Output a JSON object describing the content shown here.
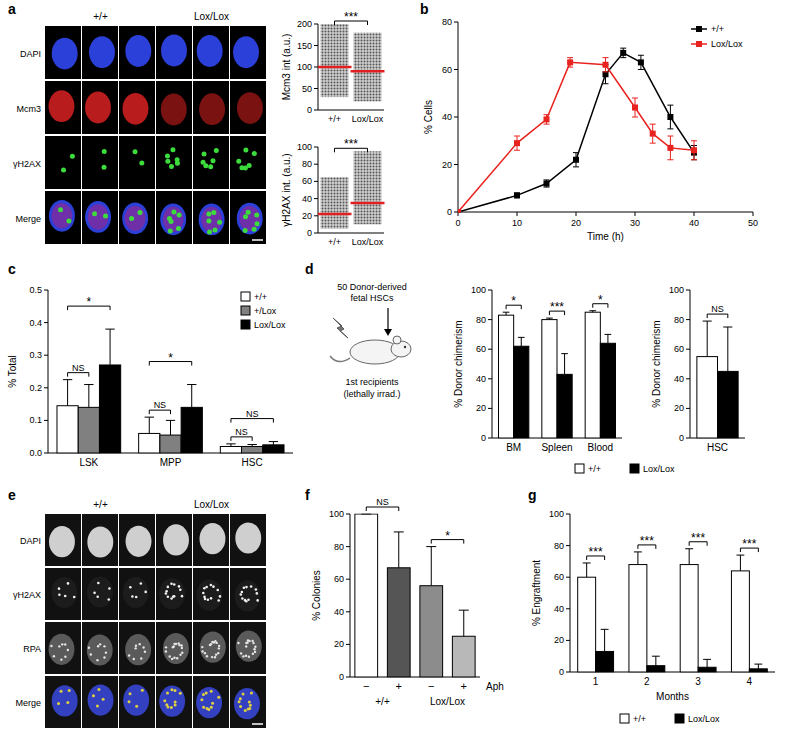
{
  "panel_labels": [
    "a",
    "b",
    "c",
    "d",
    "e",
    "f",
    "g"
  ],
  "images": [
    {
      "columns": [
        "+/+",
        "Lox/Lox"
      ],
      "rows": [
        "DAPI",
        "Mcm3",
        "γH2AX",
        "Merge"
      ]
    },
    {
      "columns": [
        "+/+",
        "Lox/Lox"
      ],
      "rows": [
        "DAPI",
        "γH2AX",
        "RPA",
        "Merge"
      ]
    }
  ],
  "schematic": {
    "donor": [
      "50 Donor-derived",
      "fetal HSCs"
    ],
    "recipient": [
      "1st recipients",
      "(lethally irrad.)"
    ]
  },
  "chart_data": [
    {
      "type": "dot_plot",
      "y_label": "Mcm3 int (a.u.)",
      "categories": [
        "+/+",
        "Lox/Lox"
      ],
      "values": [
        100,
        90
      ],
      "ranges": [
        [
          30,
          200
        ],
        [
          20,
          180
        ]
      ],
      "color": "#e02020",
      "ylim": [
        0,
        200
      ],
      "yticks": [
        0,
        50,
        100,
        150,
        200
      ],
      "annotations": [
        "***"
      ]
    },
    {
      "type": "dot_plot",
      "y_label": "γH2AX int. (a.u.)",
      "categories": [
        "+/+",
        "Lox/Lox"
      ],
      "values": [
        22,
        35
      ],
      "ranges": [
        [
          5,
          65
        ],
        [
          10,
          95
        ]
      ],
      "color": "#e02020",
      "ylim": [
        0,
        100
      ],
      "yticks": [
        0,
        20,
        40,
        60,
        80,
        100
      ],
      "annotations": [
        "***"
      ]
    },
    {
      "type": "line",
      "x_label": "Time (h)",
      "y_label": "% Cells",
      "xlim": [
        0,
        50
      ],
      "xticks": [
        0,
        10,
        20,
        30,
        40,
        50
      ],
      "ylim": [
        0,
        80
      ],
      "yticks": [
        0,
        20,
        40,
        60,
        80
      ],
      "legend": "top-right",
      "series": [
        {
          "name": "+/+",
          "color": "#000000",
          "marker": "square",
          "x": [
            0,
            10,
            15,
            20,
            25,
            28,
            31,
            36,
            40
          ],
          "values": [
            0,
            7,
            12,
            22,
            58,
            67,
            63,
            40,
            25
          ],
          "errors": [
            0,
            1,
            1.5,
            3,
            4,
            2,
            3,
            5,
            3
          ]
        },
        {
          "name": "Lox/Lox",
          "color": "#e8231f",
          "marker": "square",
          "x": [
            0,
            10,
            15,
            19,
            25,
            30,
            33,
            36,
            40
          ],
          "values": [
            0,
            29,
            39,
            63,
            62,
            44,
            33,
            27,
            26
          ],
          "errors": [
            0,
            3,
            2,
            2,
            3,
            4,
            4,
            5,
            4
          ]
        }
      ]
    },
    {
      "type": "bar",
      "y_label": "% Total",
      "categories": [
        "LSK",
        "MPP",
        "HSC"
      ],
      "ylim": [
        0,
        0.5
      ],
      "yticks": [
        {
          "value": 0,
          "label": "0.0"
        },
        0.1,
        0.2,
        0.3,
        0.4,
        0.5
      ],
      "legend": "top-right",
      "series": [
        {
          "name": "+/+",
          "color": "#ffffff",
          "values": [
            0.145,
            0.06,
            0.02
          ],
          "errors": [
            0.08,
            0.05,
            0.008
          ]
        },
        {
          "name": "+/Lox",
          "color": "#808080",
          "values": [
            0.14,
            0.055,
            0.02
          ],
          "errors": [
            0.07,
            0.045,
            0.006
          ]
        },
        {
          "name": "Lox/Lox",
          "color": "#000000",
          "values": [
            0.27,
            0.14,
            0.025
          ],
          "errors": [
            0.11,
            0.07,
            0.01
          ]
        }
      ],
      "annotations": [
        "NS",
        "*",
        "NS",
        "*",
        "NS",
        "NS"
      ]
    },
    {
      "type": "bar",
      "y_label": "% Donor chimerism",
      "categories": [
        "BM",
        "Spleen",
        "Blood"
      ],
      "ylim": [
        0,
        100
      ],
      "yticks": [
        0,
        20,
        40,
        60,
        80,
        100
      ],
      "legend": "bottom",
      "series": [
        {
          "name": "+/+",
          "color": "#ffffff",
          "values": [
            83,
            80,
            85
          ],
          "errors": [
            2,
            1,
            1
          ]
        },
        {
          "name": "Lox/Lox",
          "color": "#000000",
          "values": [
            62,
            43,
            64
          ],
          "errors": [
            6,
            14,
            6
          ]
        }
      ],
      "annotations": [
        "*",
        "***",
        "*"
      ]
    },
    {
      "type": "bar",
      "y_label": "% Donor chimerism",
      "categories": [
        "HSC"
      ],
      "ylim": [
        0,
        100
      ],
      "yticks": [
        0,
        20,
        40,
        60,
        80,
        100
      ],
      "series": [
        {
          "color": "#ffffff",
          "values": [
            55
          ],
          "errors": [
            24
          ]
        },
        {
          "color": "#000000",
          "values": [
            45
          ],
          "errors": [
            30
          ]
        }
      ],
      "annotations": [
        "NS"
      ]
    },
    {
      "type": "bar",
      "y_label": "% Colonies",
      "categories": [
        "−",
        "+",
        "−",
        "+"
      ],
      "groups": [
        "+/+",
        "Lox/Lox"
      ],
      "x_label": "Aph",
      "ylim": [
        0,
        100
      ],
      "yticks": [
        0,
        20,
        40,
        60,
        80,
        100
      ],
      "values": [
        100,
        67,
        56,
        25
      ],
      "errors": [
        0,
        22,
        24,
        16
      ],
      "colors": [
        "#ffffff",
        "#555555",
        "#8c8c8c",
        "#b8b8b8"
      ],
      "annotations": [
        "NS",
        "*"
      ]
    },
    {
      "type": "bar",
      "y_label": "% Engraftment",
      "x_label": "Months",
      "categories": [
        "1",
        "2",
        "3",
        "4"
      ],
      "ylim": [
        0,
        100
      ],
      "yticks": [
        0,
        20,
        40,
        60,
        80,
        100
      ],
      "legend": "bottom",
      "series": [
        {
          "name": "+/+",
          "color": "#ffffff",
          "values": [
            60,
            68,
            68,
            64
          ],
          "errors": [
            9,
            8,
            10,
            10
          ]
        },
        {
          "name": "Lox/Lox",
          "color": "#000000",
          "values": [
            13,
            4,
            3,
            2
          ],
          "errors": [
            14,
            6,
            5,
            3
          ]
        }
      ],
      "annotations": [
        "***",
        "***",
        "***",
        "***"
      ]
    }
  ]
}
